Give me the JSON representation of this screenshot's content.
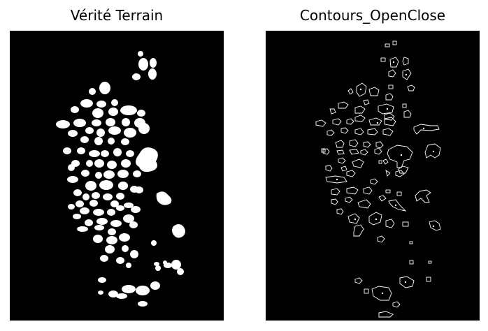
{
  "panels": {
    "left_title": "Vérité Terrain",
    "right_title": "Contours_OpenClose"
  },
  "colors": {
    "background": "#ffffff",
    "image_bg": "#000000",
    "mask_fill": "#ffffff",
    "contour_stroke": "#ffffff"
  }
}
